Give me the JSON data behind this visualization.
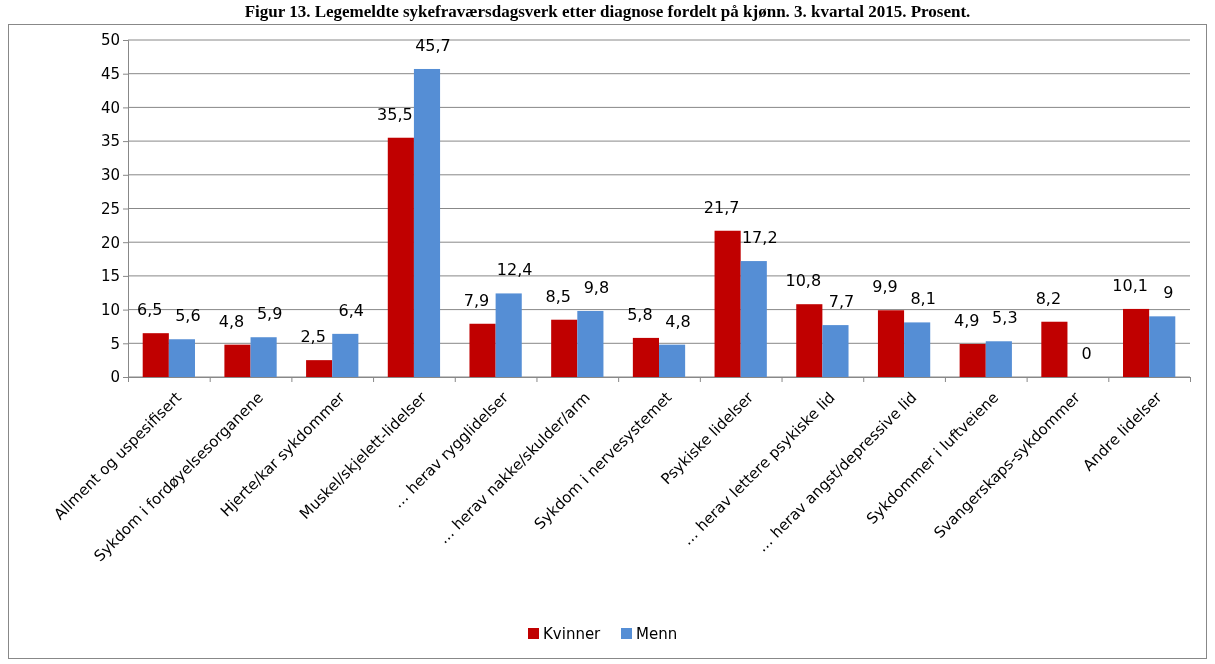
{
  "chart_data": {
    "type": "bar",
    "title": "Figur 13. Legemeldte sykefraværsdagsverk etter diagnose fordelt på kjønn. 3. kvartal 2015. Prosent.",
    "categories": [
      "Allment og uspesifisert",
      "Sykdom i fordøyelsesorganene",
      "Hjerte/kar sykdommer",
      "Muskel/skjelett-lidelser",
      "… herav rygglidelser",
      "… herav nakke/skulder/arm",
      "Sykdom i nervesystemet",
      "Psykiske lidelser",
      "… herav lettere psykiske lid",
      "… herav angst/depressive lid",
      "Sykdommer i luftveiene",
      "Svangerskaps-sykdommer",
      "Andre lidelser"
    ],
    "series": [
      {
        "name": "Kvinner",
        "color": "#c00000",
        "values": [
          6.5,
          4.8,
          2.5,
          35.5,
          7.9,
          8.5,
          5.8,
          21.7,
          10.8,
          9.9,
          4.9,
          8.2,
          10.1
        ],
        "value_labels": [
          "6,5",
          "4,8",
          "2,5",
          "35,5",
          "7,9",
          "8,5",
          "5,8",
          "21,7",
          "10,8",
          "9,9",
          "4,9",
          "8,2",
          "10,1"
        ]
      },
      {
        "name": "Menn",
        "color": "#558ed5",
        "values": [
          5.6,
          5.9,
          6.4,
          45.7,
          12.4,
          9.8,
          4.8,
          17.2,
          7.7,
          8.1,
          5.3,
          0,
          9
        ],
        "value_labels": [
          "5,6",
          "5,9",
          "6,4",
          "45,7",
          "12,4",
          "9,8",
          "4,8",
          "17,2",
          "7,7",
          "8,1",
          "5,3",
          "0",
          "9"
        ]
      }
    ],
    "ylim": [
      0,
      50
    ],
    "yticks": [
      0,
      5,
      10,
      15,
      20,
      25,
      30,
      35,
      40,
      45,
      50
    ],
    "grid": "y",
    "legend": "bottom"
  }
}
